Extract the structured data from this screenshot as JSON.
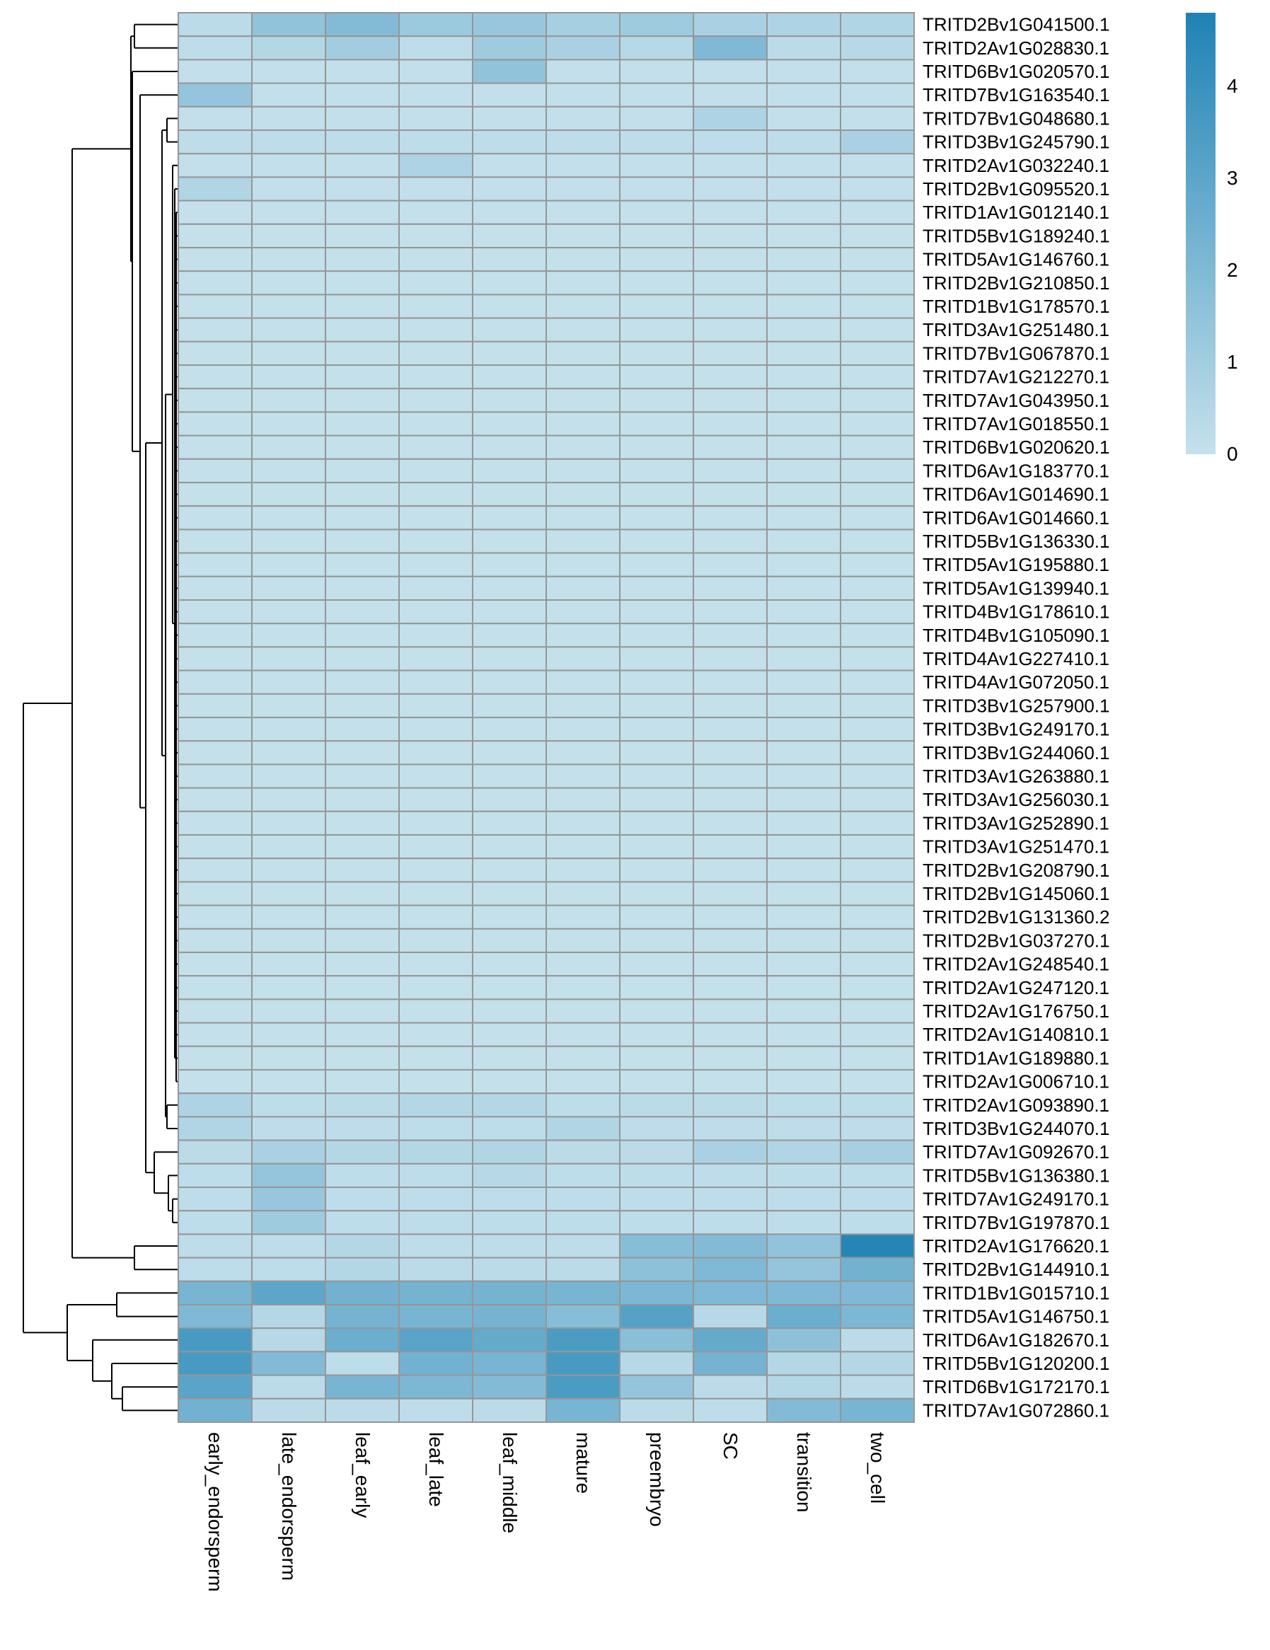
{
  "chart_data": {
    "type": "heatmap",
    "columns": [
      "early_endorsperm",
      "late_endorsperm",
      "leaf_early",
      "leaf_late",
      "leaf_middle",
      "mature",
      "preembryo",
      "SC",
      "transition",
      "two_cell"
    ],
    "rows": [
      "TRITD2Bv1G041500.1",
      "TRITD2Av1G028830.1",
      "TRITD6Bv1G020570.1",
      "TRITD7Bv1G163540.1",
      "TRITD7Bv1G048680.1",
      "TRITD3Bv1G245790.1",
      "TRITD2Av1G032240.1",
      "TRITD2Bv1G095520.1",
      "TRITD1Av1G012140.1",
      "TRITD5Bv1G189240.1",
      "TRITD5Av1G146760.1",
      "TRITD2Bv1G210850.1",
      "TRITD1Bv1G178570.1",
      "TRITD3Av1G251480.1",
      "TRITD7Bv1G067870.1",
      "TRITD7Av1G212270.1",
      "TRITD7Av1G043950.1",
      "TRITD7Av1G018550.1",
      "TRITD6Bv1G020620.1",
      "TRITD6Av1G183770.1",
      "TRITD6Av1G014690.1",
      "TRITD6Av1G014660.1",
      "TRITD5Bv1G136330.1",
      "TRITD5Av1G195880.1",
      "TRITD5Av1G139940.1",
      "TRITD4Bv1G178610.1",
      "TRITD4Bv1G105090.1",
      "TRITD4Av1G227410.1",
      "TRITD4Av1G072050.1",
      "TRITD3Bv1G257900.1",
      "TRITD3Bv1G249170.1",
      "TRITD3Bv1G244060.1",
      "TRITD3Av1G263880.1",
      "TRITD3Av1G256030.1",
      "TRITD3Av1G252890.1",
      "TRITD3Av1G251470.1",
      "TRITD2Bv1G208790.1",
      "TRITD2Bv1G145060.1",
      "TRITD2Bv1G131360.2",
      "TRITD2Bv1G037270.1",
      "TRITD2Av1G248540.1",
      "TRITD2Av1G247120.1",
      "TRITD2Av1G176750.1",
      "TRITD2Av1G140810.1",
      "TRITD1Av1G189880.1",
      "TRITD2Av1G006710.1",
      "TRITD2Av1G093890.1",
      "TRITD3Bv1G244070.1",
      "TRITD7Av1G092670.1",
      "TRITD5Bv1G136380.1",
      "TRITD7Av1G249170.1",
      "TRITD7Bv1G197870.1",
      "TRITD2Av1G176620.1",
      "TRITD2Bv1G144910.1",
      "TRITD1Bv1G015710.1",
      "TRITD5Av1G146750.1",
      "TRITD6Av1G182670.1",
      "TRITD5Bv1G120200.1",
      "TRITD6Bv1G172170.1",
      "TRITD7Av1G072860.1"
    ],
    "values": [
      [
        0.3,
        1.5,
        1.9,
        1.2,
        1.3,
        0.9,
        1.1,
        0.8,
        0.7,
        0.6
      ],
      [
        0.2,
        0.5,
        1.0,
        0.2,
        1.1,
        0.8,
        0.4,
        2.0,
        0.3,
        0.4
      ],
      [
        0.1,
        0.1,
        0.1,
        0.1,
        1.5,
        0.1,
        0.1,
        0.1,
        0.1,
        0.1
      ],
      [
        1.4,
        0.1,
        0.1,
        0.1,
        0.1,
        0.1,
        0.1,
        0.1,
        0.1,
        0.1
      ],
      [
        0.1,
        0.1,
        0.1,
        0.1,
        0.1,
        0.1,
        0.1,
        0.7,
        0.1,
        0.1
      ],
      [
        0.2,
        0.2,
        0.2,
        0.2,
        0.2,
        0.2,
        0.2,
        0.2,
        0.2,
        0.8
      ],
      [
        0.1,
        0.1,
        0.1,
        0.7,
        0.1,
        0.1,
        0.1,
        0.1,
        0.1,
        0.1
      ],
      [
        0.6,
        0.1,
        0.1,
        0.1,
        0.1,
        0.1,
        0.1,
        0.1,
        0.1,
        0.1
      ],
      [
        0.05,
        0.05,
        0.05,
        0.05,
        0.05,
        0.05,
        0.05,
        0.05,
        0.05,
        0.05
      ],
      [
        0.05,
        0.05,
        0.05,
        0.05,
        0.05,
        0.05,
        0.05,
        0.05,
        0.05,
        0.05
      ],
      [
        0.05,
        0.05,
        0.05,
        0.05,
        0.05,
        0.05,
        0.05,
        0.05,
        0.05,
        0.05
      ],
      [
        0.05,
        0.05,
        0.05,
        0.05,
        0.05,
        0.05,
        0.05,
        0.05,
        0.05,
        0.05
      ],
      [
        0.05,
        0.05,
        0.05,
        0.05,
        0.05,
        0.05,
        0.05,
        0.05,
        0.05,
        0.05
      ],
      [
        0.05,
        0.05,
        0.05,
        0.05,
        0.05,
        0.05,
        0.05,
        0.05,
        0.05,
        0.05
      ],
      [
        0.05,
        0.05,
        0.05,
        0.05,
        0.05,
        0.05,
        0.05,
        0.05,
        0.05,
        0.05
      ],
      [
        0.05,
        0.05,
        0.05,
        0.05,
        0.05,
        0.05,
        0.05,
        0.05,
        0.05,
        0.05
      ],
      [
        0.05,
        0.05,
        0.05,
        0.05,
        0.05,
        0.05,
        0.05,
        0.05,
        0.05,
        0.05
      ],
      [
        0.05,
        0.05,
        0.05,
        0.05,
        0.05,
        0.05,
        0.05,
        0.05,
        0.05,
        0.05
      ],
      [
        0.05,
        0.05,
        0.05,
        0.05,
        0.05,
        0.05,
        0.05,
        0.05,
        0.05,
        0.05
      ],
      [
        0.05,
        0.05,
        0.05,
        0.05,
        0.05,
        0.05,
        0.05,
        0.05,
        0.05,
        0.05
      ],
      [
        0.05,
        0.05,
        0.05,
        0.05,
        0.05,
        0.05,
        0.05,
        0.05,
        0.05,
        0.05
      ],
      [
        0.05,
        0.05,
        0.05,
        0.05,
        0.05,
        0.05,
        0.05,
        0.05,
        0.05,
        0.05
      ],
      [
        0.05,
        0.05,
        0.05,
        0.05,
        0.05,
        0.05,
        0.05,
        0.05,
        0.05,
        0.05
      ],
      [
        0.05,
        0.05,
        0.05,
        0.05,
        0.05,
        0.05,
        0.05,
        0.05,
        0.05,
        0.05
      ],
      [
        0.05,
        0.05,
        0.05,
        0.05,
        0.05,
        0.05,
        0.05,
        0.05,
        0.05,
        0.05
      ],
      [
        0.05,
        0.05,
        0.05,
        0.05,
        0.05,
        0.05,
        0.05,
        0.05,
        0.05,
        0.05
      ],
      [
        0.05,
        0.05,
        0.05,
        0.05,
        0.05,
        0.05,
        0.05,
        0.05,
        0.05,
        0.05
      ],
      [
        0.05,
        0.05,
        0.05,
        0.05,
        0.05,
        0.05,
        0.05,
        0.05,
        0.05,
        0.05
      ],
      [
        0.05,
        0.05,
        0.05,
        0.05,
        0.05,
        0.05,
        0.05,
        0.05,
        0.05,
        0.05
      ],
      [
        0.05,
        0.05,
        0.05,
        0.05,
        0.05,
        0.05,
        0.05,
        0.05,
        0.05,
        0.05
      ],
      [
        0.05,
        0.05,
        0.05,
        0.05,
        0.05,
        0.05,
        0.05,
        0.05,
        0.05,
        0.05
      ],
      [
        0.05,
        0.05,
        0.05,
        0.05,
        0.05,
        0.05,
        0.05,
        0.05,
        0.05,
        0.05
      ],
      [
        0.05,
        0.05,
        0.05,
        0.05,
        0.05,
        0.05,
        0.05,
        0.05,
        0.05,
        0.05
      ],
      [
        0.05,
        0.05,
        0.05,
        0.05,
        0.05,
        0.05,
        0.05,
        0.05,
        0.05,
        0.05
      ],
      [
        0.05,
        0.05,
        0.05,
        0.05,
        0.05,
        0.05,
        0.05,
        0.05,
        0.05,
        0.05
      ],
      [
        0.05,
        0.05,
        0.05,
        0.05,
        0.05,
        0.05,
        0.05,
        0.05,
        0.05,
        0.05
      ],
      [
        0.05,
        0.05,
        0.05,
        0.05,
        0.05,
        0.05,
        0.05,
        0.05,
        0.05,
        0.05
      ],
      [
        0.05,
        0.05,
        0.05,
        0.05,
        0.05,
        0.05,
        0.05,
        0.05,
        0.05,
        0.05
      ],
      [
        0.05,
        0.05,
        0.05,
        0.05,
        0.05,
        0.05,
        0.05,
        0.05,
        0.05,
        0.05
      ],
      [
        0.05,
        0.05,
        0.05,
        0.05,
        0.05,
        0.05,
        0.05,
        0.05,
        0.05,
        0.05
      ],
      [
        0.05,
        0.05,
        0.05,
        0.05,
        0.05,
        0.05,
        0.05,
        0.05,
        0.05,
        0.05
      ],
      [
        0.05,
        0.05,
        0.05,
        0.05,
        0.05,
        0.05,
        0.05,
        0.05,
        0.05,
        0.05
      ],
      [
        0.05,
        0.05,
        0.05,
        0.05,
        0.05,
        0.05,
        0.05,
        0.05,
        0.05,
        0.05
      ],
      [
        0.05,
        0.05,
        0.05,
        0.05,
        0.05,
        0.05,
        0.05,
        0.05,
        0.05,
        0.05
      ],
      [
        0.05,
        0.05,
        0.05,
        0.05,
        0.05,
        0.05,
        0.05,
        0.05,
        0.05,
        0.05
      ],
      [
        0.05,
        0.05,
        0.05,
        0.05,
        0.05,
        0.05,
        0.05,
        0.05,
        0.05,
        0.05
      ],
      [
        0.7,
        0.2,
        0.3,
        0.5,
        0.5,
        0.2,
        0.3,
        0.3,
        0.2,
        0.2
      ],
      [
        0.6,
        0.2,
        0.2,
        0.2,
        0.2,
        0.6,
        0.2,
        0.2,
        0.2,
        0.2
      ],
      [
        0.3,
        0.8,
        0.5,
        0.5,
        0.6,
        0.3,
        0.3,
        0.8,
        0.6,
        0.9
      ],
      [
        0.2,
        1.4,
        0.2,
        0.2,
        0.4,
        0.2,
        0.2,
        0.2,
        0.2,
        0.2
      ],
      [
        0.2,
        1.3,
        0.2,
        0.2,
        0.2,
        0.2,
        0.2,
        0.2,
        0.2,
        0.2
      ],
      [
        0.2,
        1.1,
        0.2,
        0.2,
        0.2,
        0.2,
        0.2,
        0.2,
        0.2,
        0.2
      ],
      [
        0.2,
        0.2,
        0.5,
        0.2,
        0.2,
        0.2,
        1.8,
        1.9,
        1.5,
        4.6
      ],
      [
        0.2,
        0.2,
        0.5,
        0.3,
        0.3,
        0.3,
        1.6,
        2.0,
        1.4,
        2.4
      ],
      [
        2.2,
        3.0,
        2.4,
        2.3,
        2.3,
        2.2,
        2.1,
        2.0,
        2.0,
        2.0
      ],
      [
        2.0,
        0.5,
        2.3,
        2.2,
        2.3,
        1.8,
        3.2,
        0.4,
        2.6,
        2.1
      ],
      [
        3.6,
        0.4,
        2.6,
        3.1,
        2.8,
        3.5,
        1.7,
        2.8,
        1.6,
        0.3
      ],
      [
        3.6,
        1.9,
        0.2,
        2.4,
        2.2,
        3.6,
        0.4,
        2.3,
        0.5,
        0.5
      ],
      [
        3.1,
        0.3,
        2.2,
        2.1,
        1.9,
        3.5,
        1.4,
        0.3,
        0.5,
        0.3
      ],
      [
        2.4,
        0.3,
        0.3,
        0.2,
        0.3,
        2.2,
        0.3,
        0.2,
        1.9,
        2.2
      ]
    ],
    "colorbar": {
      "ticks": [
        "0",
        "1",
        "2",
        "3",
        "4"
      ],
      "min": 0,
      "max": 4.8,
      "colors": [
        "#c5e1ec",
        "#1e82b4"
      ]
    },
    "dendrogram_order_note": "rows clustered; dendrogram on left",
    "grid_color": "#969696",
    "title": "",
    "xlabel": "",
    "ylabel": ""
  }
}
